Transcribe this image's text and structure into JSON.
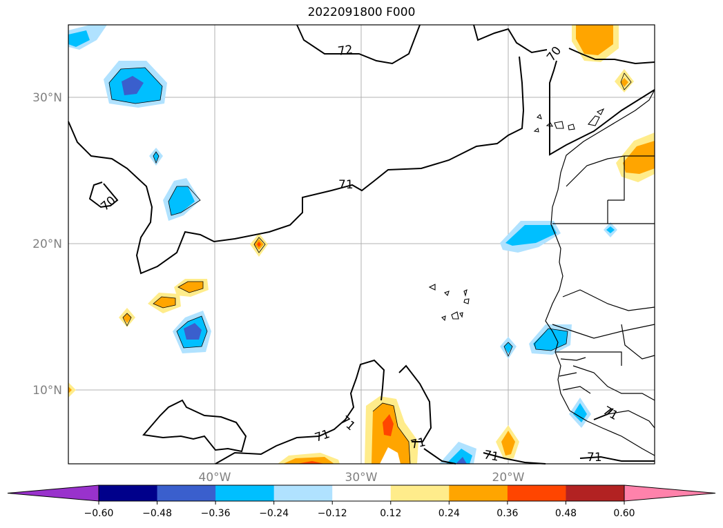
{
  "title": "2022091800 F000",
  "map": {
    "lat_labels": [
      {
        "value": 30,
        "text": "30°N"
      },
      {
        "value": 20,
        "text": "20°N"
      },
      {
        "value": 10,
        "text": "10°N"
      }
    ],
    "lon_labels": [
      {
        "value": -40,
        "text": "40°W"
      },
      {
        "value": -30,
        "text": "30°W"
      },
      {
        "value": -20,
        "text": "20°W"
      }
    ],
    "contour_labels": [
      "72",
      "70",
      "71",
      "70",
      "71",
      "71",
      "71",
      "71",
      "71",
      "71"
    ]
  },
  "colorbar": {
    "tick_labels": [
      "−0.60",
      "−0.48",
      "−0.36",
      "−0.24",
      "−0.12",
      "0.12",
      "0.24",
      "0.36",
      "0.48",
      "0.60"
    ],
    "colors": [
      "#9932cc",
      "#00008b",
      "#3a5fcd",
      "#00bfff",
      "#b0e2ff",
      "#ffffff",
      "#ffec8b",
      "#ffa500",
      "#ff4500",
      "#b22222",
      "#ff82ab"
    ]
  }
}
